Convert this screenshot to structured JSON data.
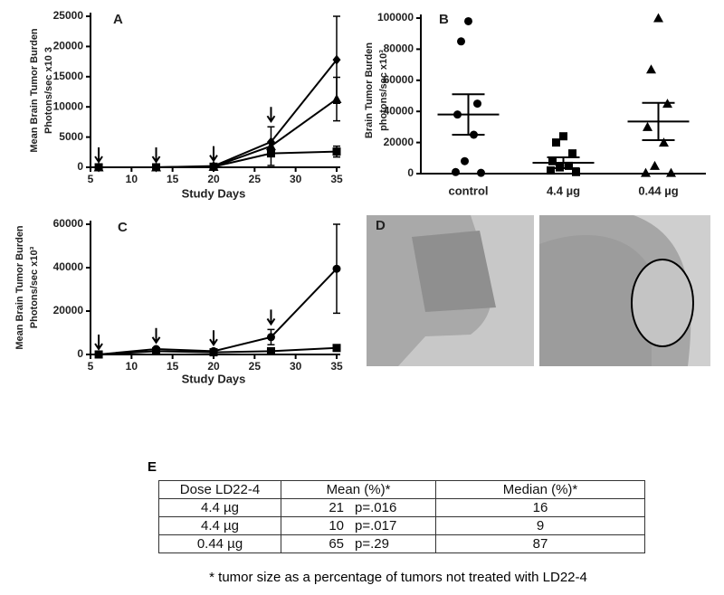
{
  "chart_data": [
    {
      "type": "line",
      "label": "A",
      "y_label": [
        "Mean Brain Tumor Burden",
        "Photons/sec x10 3"
      ],
      "x_label": "Study Days",
      "xlim": [
        5,
        35
      ],
      "xticks": [
        5,
        10,
        15,
        20,
        25,
        30,
        35
      ],
      "ylim": [
        0,
        25000
      ],
      "yticks": [
        0,
        5000,
        10000,
        15000,
        20000,
        25000
      ],
      "x": [
        6,
        13,
        20,
        27,
        35
      ],
      "series": [
        {
          "color": "#000000",
          "marker": "diamond",
          "values": [
            0,
            0,
            200,
            4200,
            17800
          ],
          "errors": [
            0,
            0,
            0,
            0,
            7200
          ]
        },
        {
          "color": "#000000",
          "marker": "triangle",
          "values": [
            0,
            0,
            100,
            3500,
            11300
          ],
          "errors": [
            0,
            0,
            0,
            3200,
            3600
          ]
        },
        {
          "color": "#000000",
          "marker": "square",
          "values": [
            0,
            0,
            100,
            2300,
            2600
          ],
          "errors": [
            0,
            0,
            0,
            0,
            900
          ]
        }
      ],
      "dose_days": [
        6,
        13,
        20,
        27
      ]
    },
    {
      "type": "dot",
      "label": "B",
      "y_label": [
        "Brain Tumor Burden",
        "photons/sec x10³"
      ],
      "categories": [
        "control",
        "4.4 µg",
        "0.44 µg"
      ],
      "ylim": [
        0,
        100000
      ],
      "yticks": [
        0,
        20000,
        40000,
        60000,
        80000,
        100000
      ],
      "markers": [
        "circle",
        "square",
        "triangle"
      ],
      "points": [
        [
          98000,
          85000,
          45000,
          38000,
          25000,
          8000,
          1000,
          500
        ],
        [
          24000,
          20000,
          13000,
          8000,
          5000,
          4000,
          2000,
          1000
        ],
        [
          100000,
          67000,
          45000,
          30000,
          20000,
          5000,
          500,
          500
        ]
      ],
      "means": [
        38000,
        7000,
        33500
      ],
      "errors": [
        13000,
        3500,
        12000
      ]
    },
    {
      "type": "line",
      "label": "C",
      "y_label": [
        "Mean Brain Tumor Burden",
        "Photons/sec x10³"
      ],
      "x_label": "Study Days",
      "xlim": [
        5,
        35
      ],
      "xticks": [
        5,
        10,
        15,
        20,
        25,
        30,
        35
      ],
      "ylim": [
        0,
        60000
      ],
      "yticks": [
        0,
        20000,
        40000,
        60000
      ],
      "x": [
        6,
        13,
        20,
        27,
        35
      ],
      "series": [
        {
          "color": "#000000",
          "marker": "circle",
          "values": [
            0,
            2500,
            1500,
            8000,
            39500
          ],
          "errors": [
            0,
            500,
            500,
            3500,
            20500
          ]
        },
        {
          "color": "#000000",
          "marker": "square",
          "values": [
            0,
            1500,
            1000,
            1500,
            3000
          ],
          "errors": [
            0,
            500,
            300,
            500,
            1000
          ]
        }
      ],
      "dose_days": [
        6,
        13,
        20,
        27
      ]
    }
  ],
  "panel_d": {
    "label": "D"
  },
  "table": {
    "label": "E",
    "header": [
      "Dose LD22-4",
      "Mean (%)*",
      "Median (%)*"
    ],
    "rows": [
      {
        "dose": "4.4 µg",
        "mean": "21",
        "p": "p=.016",
        "median": "16"
      },
      {
        "dose": "4.4 µg",
        "mean": "10",
        "p": "p=.017",
        "median": "9"
      },
      {
        "dose": "0.44 µg",
        "mean": "65",
        "p": "p=.29",
        "median": "87"
      }
    ],
    "footnote": "* tumor size as a percentage of tumors not treated with LD22-4"
  }
}
